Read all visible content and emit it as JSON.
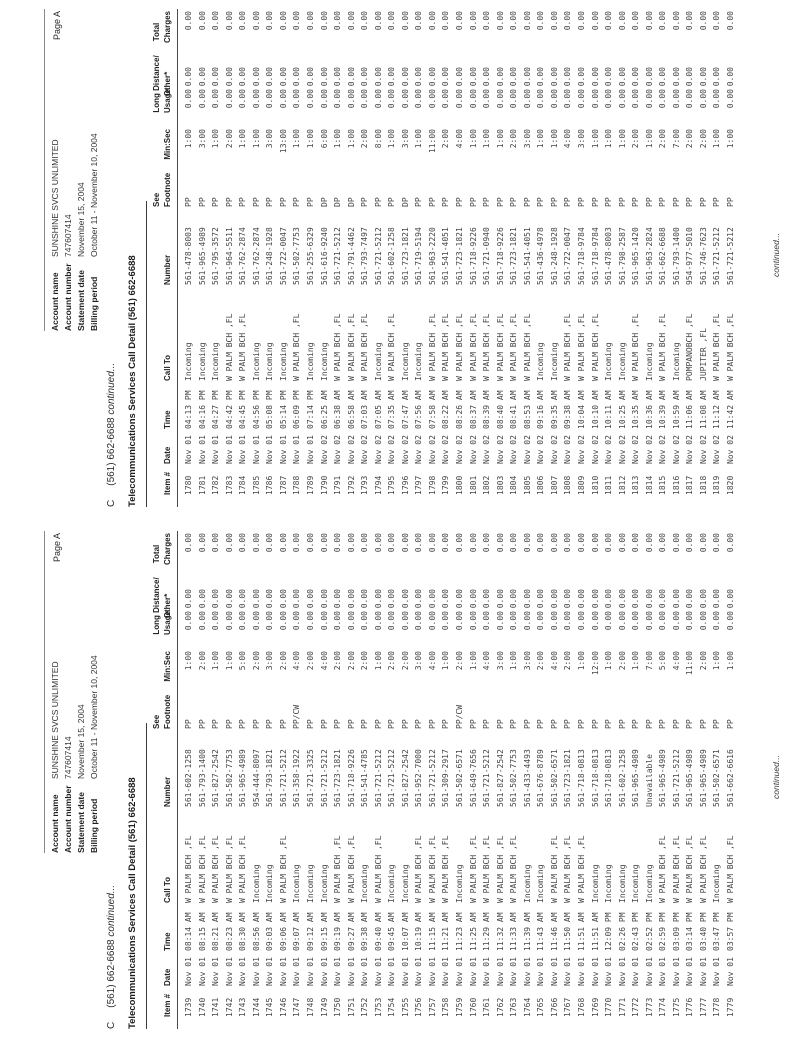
{
  "page_label": "Page A",
  "zero": "0.00",
  "section": {
    "continued_prefix": "C",
    "continued_number": "(561) 662-6688",
    "continued_suffix": "continued...",
    "detail_title": "Telecommunications Services Call Detail (561) 662-6688",
    "footer_continued": "continued..."
  },
  "account": {
    "name_label": "Account name",
    "name": "SUNSHINE SVCS UNLIMITED",
    "number_label": "Account number",
    "number": "747607414",
    "date_label": "Statement date",
    "date": "November 15, 2004",
    "period_label": "Billing period",
    "period": "October 11 - November 10, 2004"
  },
  "columns": {
    "item": "Item #",
    "date": "Date",
    "time": "Time",
    "call_to": "Call To",
    "number": "Number",
    "see": "See",
    "footnote": "Footnote",
    "min_sec": "Min:Sec",
    "usage": "Usage",
    "long_distance": "Long Distance/",
    "other": "Other*",
    "total": "Total",
    "charges": "Charges"
  },
  "pages": [
    {
      "rows": [
        [
          "1739",
          "Nov 01",
          "08:14 AM",
          "W PALM BCH ,FL",
          "561-602-1258",
          "PP",
          "1:00"
        ],
        [
          "1740",
          "Nov 01",
          "08:15 AM",
          "W PALM BCH ,FL",
          "561-793-1400",
          "PP",
          "2:00"
        ],
        [
          "1741",
          "Nov 01",
          "08:21 AM",
          "W PALM BCH ,FL",
          "561-827-2542",
          "PP",
          "1:00"
        ],
        [
          "1742",
          "Nov 01",
          "08:23 AM",
          "W PALM BCH ,FL",
          "561-502-7753",
          "PP",
          "1:00"
        ],
        [
          "1743",
          "Nov 01",
          "08:30 AM",
          "W PALM BCH ,FL",
          "561-965-4989",
          "PP",
          "5:00"
        ],
        [
          "1744",
          "Nov 01",
          "08:56 AM",
          "Incoming",
          "954-444-8097",
          "PP",
          "2:00"
        ],
        [
          "1745",
          "Nov 01",
          "09:03 AM",
          "Incoming",
          "561-793-1821",
          "PP",
          "3:00"
        ],
        [
          "1746",
          "Nov 01",
          "09:06 AM",
          "W PALM BCH ,FL",
          "561-721-5212",
          "PP",
          "2:00"
        ],
        [
          "1747",
          "Nov 01",
          "09:07 AM",
          "Incoming",
          "561-358-1922",
          "PP/CW",
          "4:00"
        ],
        [
          "1748",
          "Nov 01",
          "09:12 AM",
          "Incoming",
          "561-721-3325",
          "PP",
          "2:00"
        ],
        [
          "1749",
          "Nov 01",
          "09:15 AM",
          "Incoming",
          "561-721-5212",
          "PP",
          "4:00"
        ],
        [
          "1750",
          "Nov 01",
          "09:19 AM",
          "W PALM BCH ,FL",
          "561-723-1821",
          "PP",
          "2:00"
        ],
        [
          "1751",
          "Nov 01",
          "09:27 AM",
          "W PALM BCH ,FL",
          "561-718-9226",
          "PP",
          "2:00"
        ],
        [
          "1752",
          "Nov 01",
          "09:38 AM",
          "Incoming",
          "561-541-4785",
          "PP",
          "2:00"
        ],
        [
          "1753",
          "Nov 01",
          "09:40 AM",
          "W PALM BCH ,FL",
          "561-721-5212",
          "PP",
          "1:00"
        ],
        [
          "1754",
          "Nov 01",
          "09:45 AM",
          "Incoming",
          "561-721-5212",
          "PP",
          "2:00"
        ],
        [
          "1755",
          "Nov 01",
          "10:07 AM",
          "Incoming",
          "561-827-2542",
          "PP",
          "2:00"
        ],
        [
          "1756",
          "Nov 01",
          "10:19 AM",
          "W PALM BCH ,FL",
          "561-952-7000",
          "PP",
          "3:00"
        ],
        [
          "1757",
          "Nov 01",
          "11:15 AM",
          "W PALM BCH ,FL",
          "561-721-5212",
          "PP",
          "4:00"
        ],
        [
          "1758",
          "Nov 01",
          "11:21 AM",
          "W PALM BCH ,FL",
          "561-309-2917",
          "PP",
          "1:00"
        ],
        [
          "1759",
          "Nov 01",
          "11:23 AM",
          "Incoming",
          "561-502-6571",
          "PP/CW",
          "2:00"
        ],
        [
          "1760",
          "Nov 01",
          "11:25 AM",
          "W PALM BCH ,FL",
          "561-649-7656",
          "PP",
          "1:00"
        ],
        [
          "1761",
          "Nov 01",
          "11:29 AM",
          "W PALM BCH ,FL",
          "561-721-5212",
          "PP",
          "4:00"
        ],
        [
          "1762",
          "Nov 01",
          "11:32 AM",
          "W PALM BCH ,FL",
          "561-827-2542",
          "PP",
          "3:00"
        ],
        [
          "1763",
          "Nov 01",
          "11:33 AM",
          "W PALM BCH ,FL",
          "561-502-7753",
          "PP",
          "1:00"
        ],
        [
          "1764",
          "Nov 01",
          "11:39 AM",
          "Incoming",
          "561-433-4493",
          "PP",
          "3:00"
        ],
        [
          "1765",
          "Nov 01",
          "11:43 AM",
          "Incoming",
          "561-676-8789",
          "PP",
          "2:00"
        ],
        [
          "1766",
          "Nov 01",
          "11:46 AM",
          "W PALM BCH ,FL",
          "561-502-6571",
          "PP",
          "4:00"
        ],
        [
          "1767",
          "Nov 01",
          "11:50 AM",
          "W PALM BCH ,FL",
          "561-723-1821",
          "PP",
          "2:00"
        ],
        [
          "1768",
          "Nov 01",
          "11:51 AM",
          "W PALM BCH ,FL",
          "561-718-0813",
          "PP",
          "1:00"
        ],
        [
          "1769",
          "Nov 01",
          "11:51 AM",
          "Incoming",
          "561-718-0813",
          "PP",
          "12:00"
        ],
        [
          "1770",
          "Nov 01",
          "12:09 PM",
          "Incoming",
          "561-718-0813",
          "PP",
          "1:00"
        ],
        [
          "1771",
          "Nov 01",
          "02:26 PM",
          "Incoming",
          "561-602-1258",
          "PP",
          "2:00"
        ],
        [
          "1772",
          "Nov 01",
          "02:43 PM",
          "Incoming",
          "561-965-4989",
          "PP",
          "1:00"
        ],
        [
          "1773",
          "Nov 01",
          "02:52 PM",
          "Incoming",
          "Unavailable",
          "PP",
          "7:00"
        ],
        [
          "1774",
          "Nov 01",
          "02:59 PM",
          "W PALM BCH ,FL",
          "561-965-4989",
          "PP",
          "5:00"
        ],
        [
          "1775",
          "Nov 01",
          "03:09 PM",
          "W PALM BCH ,FL",
          "561-721-5212",
          "PP",
          "4:00"
        ],
        [
          "1776",
          "Nov 01",
          "03:14 PM",
          "W PALM BCH ,FL",
          "561-965-4989",
          "PP",
          "11:00"
        ],
        [
          "1777",
          "Nov 01",
          "03:40 PM",
          "W PALM BCH ,FL",
          "561-965-4989",
          "PP",
          "2:00"
        ],
        [
          "1778",
          "Nov 01",
          "03:47 PM",
          "Incoming",
          "561-502-6571",
          "PP",
          "1:00"
        ],
        [
          "1779",
          "Nov 01",
          "03:57 PM",
          "W PALM BCH ,FL",
          "561-662-6616",
          "PP",
          "1:00"
        ]
      ]
    },
    {
      "rows": [
        [
          "1780",
          "Nov 01",
          "04:13 PM",
          "Incoming",
          "561-478-8003",
          "PP",
          "1:00"
        ],
        [
          "1781",
          "Nov 01",
          "04:16 PM",
          "Incoming",
          "561-965-4989",
          "PP",
          "3:00"
        ],
        [
          "1782",
          "Nov 01",
          "04:27 PM",
          "Incoming",
          "561-795-3572",
          "PP",
          "1:00"
        ],
        [
          "1783",
          "Nov 01",
          "04:42 PM",
          "W PALM BCH ,FL",
          "561-964-5511",
          "PP",
          "2:00"
        ],
        [
          "1784",
          "Nov 01",
          "04:45 PM",
          "W PALM BCH ,FL",
          "561-762-2874",
          "PP",
          "1:00"
        ],
        [
          "1785",
          "Nov 01",
          "04:56 PM",
          "Incoming",
          "561-762-2874",
          "PP",
          "1:00"
        ],
        [
          "1786",
          "Nov 01",
          "05:08 PM",
          "Incoming",
          "561-248-1928",
          "PP",
          "3:00"
        ],
        [
          "1787",
          "Nov 01",
          "05:14 PM",
          "Incoming",
          "561-722-0047",
          "PP",
          "13:00"
        ],
        [
          "1788",
          "Nov 01",
          "06:09 PM",
          "W PALM BCH ,FL",
          "561-502-7753",
          "PP",
          "1:00"
        ],
        [
          "1789",
          "Nov 01",
          "07:14 PM",
          "Incoming",
          "561-255-6329",
          "PP",
          "1:00"
        ],
        [
          "1790",
          "Nov 02",
          "06:25 AM",
          "Incoming",
          "561-616-9240",
          "DP",
          "6:00"
        ],
        [
          "1791",
          "Nov 02",
          "06:38 AM",
          "W PALM BCH ,FL",
          "561-721-5212",
          "DP",
          "1:00"
        ],
        [
          "1792",
          "Nov 02",
          "06:58 AM",
          "W PALM BCH ,FL",
          "561-791-4462",
          "DP",
          "1:00"
        ],
        [
          "1793",
          "Nov 02",
          "07:03 AM",
          "W PALM BCH ,FL",
          "561-793-7497",
          "PP",
          "2:00"
        ],
        [
          "1794",
          "Nov 02",
          "07:05 AM",
          "Incoming",
          "561-721-5212",
          "PP",
          "8:00"
        ],
        [
          "1795",
          "Nov 02",
          "07:35 AM",
          "W PALM BCH ,FL",
          "561-602-1258",
          "PP",
          "1:00"
        ],
        [
          "1796",
          "Nov 02",
          "07:47 AM",
          "Incoming",
          "561-723-1821",
          "DP",
          "3:00"
        ],
        [
          "1797",
          "Nov 02",
          "07:56 AM",
          "Incoming",
          "561-719-5194",
          "PP",
          "1:00"
        ],
        [
          "1798",
          "Nov 02",
          "07:58 AM",
          "W PALM BCH ,FL",
          "561-963-2220",
          "PP",
          "11:00"
        ],
        [
          "1799",
          "Nov 02",
          "08:22 AM",
          "W PALM BCH ,FL",
          "561-541-4051",
          "PP",
          "2:00"
        ],
        [
          "1800",
          "Nov 02",
          "08:26 AM",
          "W PALM BCH ,FL",
          "561-723-1821",
          "PP",
          "4:00"
        ],
        [
          "1801",
          "Nov 02",
          "08:37 AM",
          "W PALM BCH ,FL",
          "561-718-9226",
          "PP",
          "1:00"
        ],
        [
          "1802",
          "Nov 02",
          "08:39 AM",
          "W PALM BCH ,FL",
          "561-721-0940",
          "PP",
          "1:00"
        ],
        [
          "1803",
          "Nov 02",
          "08:40 AM",
          "W PALM BCH ,FL",
          "561-718-9226",
          "PP",
          "1:00"
        ],
        [
          "1804",
          "Nov 02",
          "08:41 AM",
          "W PALM BCH ,FL",
          "561-723-1821",
          "PP",
          "2:00"
        ],
        [
          "1805",
          "Nov 02",
          "08:53 AM",
          "W PALM BCH ,FL",
          "561-541-4051",
          "PP",
          "3:00"
        ],
        [
          "1806",
          "Nov 02",
          "09:16 AM",
          "Incoming",
          "561-436-4978",
          "PP",
          "1:00"
        ],
        [
          "1807",
          "Nov 02",
          "09:35 AM",
          "Incoming",
          "561-248-1928",
          "PP",
          "1:00"
        ],
        [
          "1808",
          "Nov 02",
          "09:38 AM",
          "W PALM BCH ,FL",
          "561-722-0047",
          "PP",
          "4:00"
        ],
        [
          "1809",
          "Nov 02",
          "10:04 AM",
          "W PALM BCH ,FL",
          "561-718-9784",
          "PP",
          "3:00"
        ],
        [
          "1810",
          "Nov 02",
          "10:10 AM",
          "W PALM BCH ,FL",
          "561-718-9784",
          "PP",
          "1:00"
        ],
        [
          "1811",
          "Nov 02",
          "10:11 AM",
          "Incoming",
          "561-478-8003",
          "PP",
          "1:00"
        ],
        [
          "1812",
          "Nov 02",
          "10:25 AM",
          "Incoming",
          "561-798-2587",
          "PP",
          "1:00"
        ],
        [
          "1813",
          "Nov 02",
          "10:35 AM",
          "W PALM BCH ,FL",
          "561-965-1420",
          "PP",
          "2:00"
        ],
        [
          "1814",
          "Nov 02",
          "10:36 AM",
          "Incoming",
          "561-963-2824",
          "PP",
          "1:00"
        ],
        [
          "1815",
          "Nov 02",
          "10:39 AM",
          "W PALM BCH ,FL",
          "561-662-6688",
          "PP",
          "2:00"
        ],
        [
          "1816",
          "Nov 02",
          "10:59 AM",
          "Incoming",
          "561-793-1400",
          "PP",
          "7:00"
        ],
        [
          "1817",
          "Nov 02",
          "11:06 AM",
          "POMPANOBCH ,FL",
          "954-977-5010",
          "PP",
          "2:00"
        ],
        [
          "1818",
          "Nov 02",
          "11:08 AM",
          "JUPITER ,FL",
          "561-746-7623",
          "PP",
          "2:00"
        ],
        [
          "1819",
          "Nov 02",
          "11:12 AM",
          "W PALM BCH ,FL",
          "561-721-5212",
          "PP",
          "1:00"
        ],
        [
          "1820",
          "Nov 02",
          "11:42 AM",
          "W PALM BCH ,FL",
          "561-721-5212",
          "PP",
          "1:00"
        ]
      ]
    }
  ]
}
